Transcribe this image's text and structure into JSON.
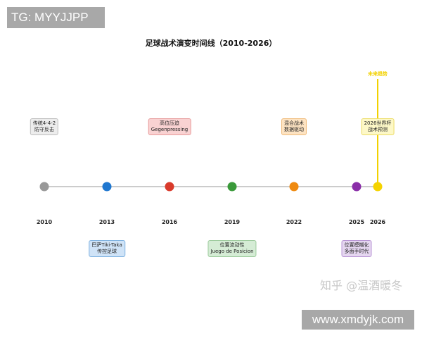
{
  "watermarks": {
    "top": "TG: MYYJJPP",
    "bottom": "www.xmdyjk.com",
    "zhihu": "知乎 @温酒暖冬"
  },
  "title": "足球战术演变时间线（2010-2026）",
  "future_label": "未来趋势",
  "timeline": [
    {
      "year": "2010",
      "color": "#999999",
      "label": [
        "传统4-4-2",
        "防守反击"
      ],
      "side": "above",
      "style": "gray"
    },
    {
      "year": "2013",
      "color": "#1f77d0",
      "label": [
        "巴萨Tiki-Taka",
        "传控足球"
      ],
      "side": "below",
      "style": "blue"
    },
    {
      "year": "2016",
      "color": "#d93a2b",
      "label": [
        "高位压迫",
        "Gegenpressing"
      ],
      "side": "above",
      "style": "red"
    },
    {
      "year": "2019",
      "color": "#3a9a3a",
      "label": [
        "位置流动性",
        "Juego de Posicion"
      ],
      "side": "below",
      "style": "green"
    },
    {
      "year": "2022",
      "color": "#ef8a10",
      "label": [
        "混合战术",
        "数据驱动"
      ],
      "side": "above",
      "style": "orange"
    },
    {
      "year": "2025",
      "color": "#8a2ea8",
      "label": [
        "位置模糊化",
        "多面手时代"
      ],
      "side": "below",
      "style": "purple"
    },
    {
      "year": "2026",
      "color": "#f5d300",
      "label": [
        "2026世界杯",
        "战术预测"
      ],
      "side": "above",
      "style": "yellow"
    }
  ],
  "colors": {
    "axis": "#cccccc",
    "future_line": "#f2d100"
  }
}
